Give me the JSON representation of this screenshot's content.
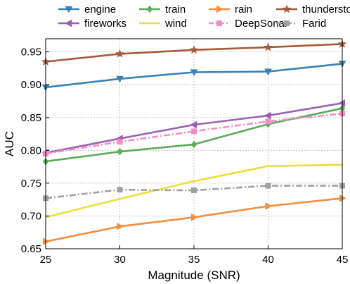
{
  "chart_data": {
    "type": "line",
    "xlabel": "Magnitude (SNR)",
    "ylabel": "AUC",
    "x": [
      25,
      30,
      35,
      40,
      45
    ],
    "xlim": [
      25,
      45
    ],
    "ylim": [
      0.65,
      0.97
    ],
    "xticks": [
      "25",
      "30",
      "35",
      "40",
      "45"
    ],
    "yticks": [
      "0.65",
      "0.70",
      "0.75",
      "0.80",
      "0.85",
      "0.90",
      "0.95"
    ],
    "grid": true,
    "legend_position": "top",
    "series": [
      {
        "name": "engine",
        "color": "#3a81b6",
        "marker": "triangle-down",
        "dashed": false,
        "values": [
          0.896,
          0.909,
          0.919,
          0.92,
          0.932
        ]
      },
      {
        "name": "train",
        "color": "#5daa5a",
        "marker": "diamond",
        "dashed": false,
        "values": [
          0.783,
          0.798,
          0.809,
          0.84,
          0.864
        ]
      },
      {
        "name": "rain",
        "color": "#f28e3d",
        "marker": "triangle-right",
        "dashed": false,
        "values": [
          0.661,
          0.684,
          0.698,
          0.715,
          0.727
        ]
      },
      {
        "name": "thunderstorm",
        "color": "#a55b3a",
        "marker": "star",
        "dashed": false,
        "values": [
          0.935,
          0.947,
          0.953,
          0.957,
          0.962
        ]
      },
      {
        "name": "fireworks",
        "color": "#9b5fb5",
        "marker": "triangle-left",
        "dashed": false,
        "values": [
          0.796,
          0.818,
          0.839,
          0.853,
          0.872
        ]
      },
      {
        "name": "wind",
        "color": "#ebe035",
        "marker": "none",
        "dashed": false,
        "values": [
          0.698,
          0.726,
          0.753,
          0.776,
          0.778
        ]
      },
      {
        "name": "DeepSonar",
        "color": "#f28ec6",
        "marker": "square",
        "dashed": true,
        "values": [
          0.795,
          0.813,
          0.829,
          0.844,
          0.856
        ]
      },
      {
        "name": "Farid",
        "color": "#a0a0a0",
        "marker": "square",
        "dashed": true,
        "values": [
          0.727,
          0.74,
          0.739,
          0.746,
          0.746
        ]
      }
    ]
  }
}
